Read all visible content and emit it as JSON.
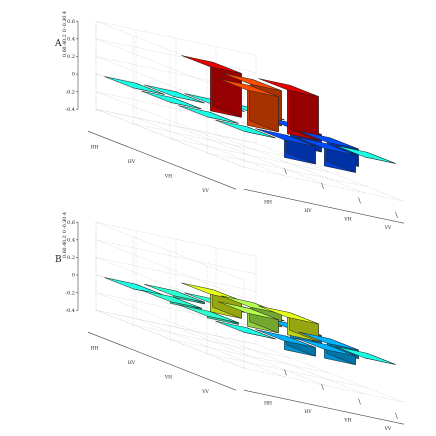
{
  "chart_data": [
    {
      "type": "bar3d",
      "panel_label": "A",
      "zlim": [
        -0.4,
        0.6
      ],
      "zticks": [
        "0.6",
        "0.4",
        "0.2",
        "0",
        "-0.2",
        "-0.4"
      ],
      "x_categories": [
        "HH",
        "HV",
        "VH",
        "VV"
      ],
      "y_categories": [
        "HH",
        "HV",
        "VH",
        "VV"
      ],
      "grid": true,
      "values": [
        [
          0.0,
          0.0,
          0.0,
          0.0
        ],
        [
          0.0,
          0.5,
          0.4,
          -0.2
        ],
        [
          0.0,
          0.4,
          0.5,
          -0.2
        ],
        [
          0.0,
          -0.2,
          -0.2,
          0.0
        ]
      ]
    },
    {
      "type": "bar3d",
      "panel_label": "B",
      "zlim": [
        -0.4,
        0.6
      ],
      "zticks": [
        "0.6",
        "0.4",
        "0.2",
        "0",
        "-0.2",
        "-0.4"
      ],
      "x_categories": [
        "HH",
        "HV",
        "VH",
        "VV"
      ],
      "y_categories": [
        "HH",
        "HV",
        "VH",
        "VV"
      ],
      "grid": true,
      "values": [
        [
          0.0,
          0.02,
          0.02,
          0.0
        ],
        [
          0.02,
          0.2,
          0.15,
          -0.1
        ],
        [
          0.02,
          0.15,
          0.2,
          -0.1
        ],
        [
          0.0,
          -0.1,
          -0.1,
          0.0
        ]
      ]
    }
  ],
  "colors": {
    "colormap": [
      "#00008f",
      "#0000ff",
      "#0080ff",
      "#00ffff",
      "#80ff80",
      "#ffff00",
      "#ff8000",
      "#ff0000",
      "#800000"
    ],
    "edge": "#222222"
  }
}
